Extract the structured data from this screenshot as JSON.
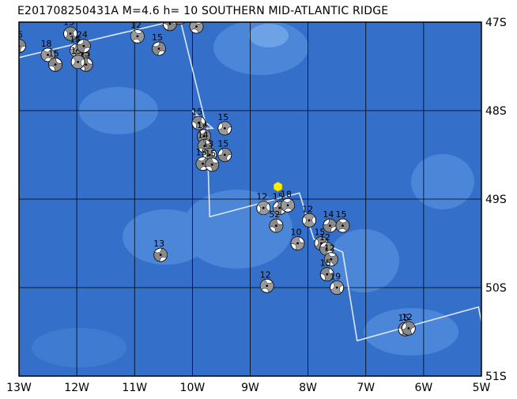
{
  "title": "E201708250431A M=4.6 h= 10 SOUTHERN MID-ATLANTIC RIDGE",
  "map": {
    "lon_range": [
      -13,
      -5
    ],
    "lat_range": [
      -51,
      -47
    ],
    "lon_ticks": [
      {
        "value": -13,
        "label": "13W"
      },
      {
        "value": -12,
        "label": "12W"
      },
      {
        "value": -11,
        "label": "11W"
      },
      {
        "value": -10,
        "label": "10W"
      },
      {
        "value": -9,
        "label": "9W"
      },
      {
        "value": -8,
        "label": "8W"
      },
      {
        "value": -7,
        "label": "7W"
      },
      {
        "value": -6,
        "label": "6W"
      },
      {
        "value": -5,
        "label": "5W"
      }
    ],
    "lat_ticks": [
      {
        "value": -47,
        "label": "47S"
      },
      {
        "value": -48,
        "label": "48S"
      },
      {
        "value": -49,
        "label": "49S"
      },
      {
        "value": -50,
        "label": "50S"
      },
      {
        "value": -51,
        "label": "51S"
      }
    ],
    "colors": {
      "ocean": "#3470c9",
      "bathy_light": "#4b86d8",
      "bathy_lighter": "#6da3e6",
      "grid": "#000000",
      "plate_boundary": "#dde6f2",
      "epicenter": "#ffee00",
      "beachball_fill": "#ffffff",
      "beachball_shade": "#9a9a9a"
    },
    "plate_boundary": [
      [
        -13.0,
        -47.4
      ],
      [
        -11.4,
        -47.15
      ],
      [
        -10.4,
        -47.0
      ],
      [
        -10.2,
        -47.0
      ],
      [
        -9.75,
        -48.2
      ],
      [
        -9.7,
        -48.2
      ],
      [
        -9.65,
        -48.2
      ],
      [
        -10.0,
        -48.0
      ],
      [
        -9.75,
        -48.2
      ],
      [
        -9.7,
        -49.2
      ],
      [
        -8.15,
        -48.93
      ],
      [
        -7.9,
        -49.45
      ],
      [
        -7.4,
        -49.6
      ],
      [
        -7.15,
        -50.6
      ],
      [
        -5.05,
        -50.22
      ],
      [
        -4.95,
        -50.55
      ]
    ],
    "epicenter": {
      "lon": -8.52,
      "lat": -48.86
    },
    "events": [
      {
        "lon": -13.0,
        "lat": -47.27,
        "depth": "15",
        "shade": "#8a8a8a"
      },
      {
        "lon": -12.5,
        "lat": -47.37,
        "depth": "18",
        "shade": "#9a9a9a"
      },
      {
        "lon": -12.37,
        "lat": -47.48,
        "depth": "15",
        "shade": "#8a8a8a"
      },
      {
        "lon": -12.11,
        "lat": -47.13,
        "depth": "15",
        "shade": "#8a8a8a"
      },
      {
        "lon": -12.0,
        "lat": -47.32,
        "depth": "15",
        "shade": "#a0a0a0"
      },
      {
        "lon": -11.9,
        "lat": -47.36,
        "depth": "14",
        "shade": "#8a8a8a"
      },
      {
        "lon": -11.84,
        "lat": -47.48,
        "depth": "15",
        "shade": "#8a8a8a"
      },
      {
        "lon": -11.98,
        "lat": -47.45,
        "depth": "15",
        "shade": "#9a9a9a"
      },
      {
        "lon": -11.88,
        "lat": -47.27,
        "depth": "24",
        "shade": "#8a8a8a"
      },
      {
        "lon": -10.95,
        "lat": -47.16,
        "depth": "12",
        "shade": "#9a9a9a"
      },
      {
        "lon": -10.39,
        "lat": -47.02,
        "depth": "15",
        "shade": "#8a8a8a"
      },
      {
        "lon": -10.22,
        "lat": -46.95,
        "depth": "15",
        "shade": "#8a8a8a"
      },
      {
        "lon": -10.58,
        "lat": -47.3,
        "depth": "15",
        "shade": "#8a8a8a"
      },
      {
        "lon": -9.93,
        "lat": -47.05,
        "depth": "15",
        "shade": "#9a9a9a"
      },
      {
        "lon": -9.89,
        "lat": -48.14,
        "depth": "15",
        "shade": "#8a8a8a"
      },
      {
        "lon": -9.44,
        "lat": -48.2,
        "depth": "15",
        "shade": "#9a9a9a"
      },
      {
        "lon": -9.8,
        "lat": -48.29,
        "depth": "14",
        "shade": "#8a8a8a"
      },
      {
        "lon": -9.79,
        "lat": -48.4,
        "depth": "14",
        "shade": "#8a8a8a"
      },
      {
        "lon": -9.7,
        "lat": -48.5,
        "depth": "13",
        "shade": "#8a8a8a"
      },
      {
        "lon": -9.44,
        "lat": -48.5,
        "depth": "15",
        "shade": "#8a8a8a"
      },
      {
        "lon": -9.82,
        "lat": -48.6,
        "depth": "15",
        "shade": "#8a8a8a"
      },
      {
        "lon": -9.66,
        "lat": -48.61,
        "depth": "15",
        "shade": "#8a8a8a"
      },
      {
        "lon": -8.77,
        "lat": -49.1,
        "depth": "12",
        "shade": "#9a9a9a"
      },
      {
        "lon": -8.49,
        "lat": -49.1,
        "depth": "15",
        "shade": "#8a8a8a"
      },
      {
        "lon": -8.35,
        "lat": -49.07,
        "depth": "18",
        "shade": "#9a9a9a"
      },
      {
        "lon": -8.55,
        "lat": -49.3,
        "depth": "52",
        "shade": "#8a8a8a"
      },
      {
        "lon": -7.98,
        "lat": -49.24,
        "depth": "12",
        "shade": "#9a9a9a"
      },
      {
        "lon": -7.62,
        "lat": -49.3,
        "depth": "14",
        "shade": "#8a8a8a"
      },
      {
        "lon": -7.4,
        "lat": -49.3,
        "depth": "15",
        "shade": "#8a8a8a"
      },
      {
        "lon": -8.18,
        "lat": -49.5,
        "depth": "10",
        "shade": "#9a9a9a"
      },
      {
        "lon": -7.77,
        "lat": -49.5,
        "depth": "15",
        "shade": "#8a8a8a"
      },
      {
        "lon": -7.68,
        "lat": -49.56,
        "depth": "12",
        "shade": "#8a8a8a"
      },
      {
        "lon": -7.6,
        "lat": -49.68,
        "depth": "12",
        "shade": "#8a8a8a"
      },
      {
        "lon": -7.67,
        "lat": -49.85,
        "depth": "15",
        "shade": "#8a8a8a"
      },
      {
        "lon": -7.5,
        "lat": -50.0,
        "depth": "19",
        "shade": "#9a9a9a"
      },
      {
        "lon": -10.55,
        "lat": -49.63,
        "depth": "13",
        "shade": "#8a8a8a"
      },
      {
        "lon": -8.71,
        "lat": -49.98,
        "depth": "12",
        "shade": "#9a9a9a"
      },
      {
        "lon": -6.32,
        "lat": -50.47,
        "depth": "15",
        "shade": "#8a8a8a"
      },
      {
        "lon": -6.26,
        "lat": -50.46,
        "depth": "12",
        "shade": "#8a8a8a"
      }
    ]
  }
}
